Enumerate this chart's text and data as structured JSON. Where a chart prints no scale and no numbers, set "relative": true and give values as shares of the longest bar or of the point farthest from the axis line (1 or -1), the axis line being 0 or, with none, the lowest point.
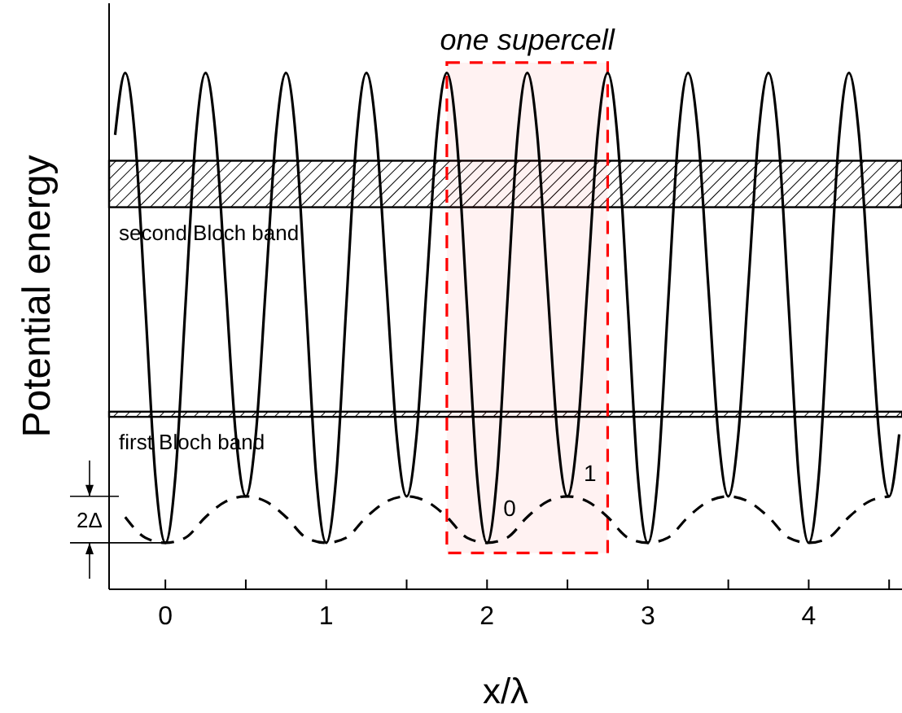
{
  "chart_data": {
    "type": "line",
    "relative": true,
    "xlabel": "x/λ",
    "ylabel": "Potential energy",
    "xlim": [
      -0.35,
      4.58
    ],
    "xticks": [
      0,
      {
        "value": 0.5,
        "label": null
      },
      1,
      {
        "value": 1.5,
        "label": null
      },
      2,
      {
        "value": 2.5,
        "label": null
      },
      3,
      {
        "value": 3.5,
        "label": null
      },
      4,
      {
        "value": 4.5,
        "label": null
      }
    ],
    "legend": false,
    "grid": false,
    "marker": "none",
    "tick_labels": "x",
    "series": [
      {
        "color": "#000000",
        "line_style": "solid",
        "x": [
          -0.3125,
          -0.25,
          -0.1875,
          -0.125,
          -0.0625,
          0,
          0.0625,
          0.125,
          0.1875,
          0.25,
          0.3125,
          0.375,
          0.4375,
          0.5,
          0.5625,
          0.625,
          0.6875,
          0.75,
          0.8125,
          0.875,
          0.9375,
          1,
          1.0625,
          1.125,
          1.1875,
          1.25,
          1.3125,
          1.375,
          1.4375,
          1.5,
          1.5625,
          1.625,
          1.6875,
          1.75,
          1.8125,
          1.875,
          1.9375,
          2,
          2.0625,
          2.125,
          2.1875,
          2.25,
          2.3125,
          2.375,
          2.4375,
          2.5,
          2.5625,
          2.625,
          2.6875,
          2.75,
          2.8125,
          2.875,
          2.9375,
          3,
          3.0625,
          3.125,
          3.1875,
          3.25,
          3.3125,
          3.375,
          3.4375,
          3.5,
          3.5625,
          3.625,
          3.6875,
          3.75,
          3.8125,
          3.875,
          3.9375,
          4,
          4.0625,
          4.125,
          4.1875,
          4.25,
          4.3125,
          4.375,
          4.4375,
          4.5,
          4.5625
        ],
        "values": [
          0.88,
          1,
          0.87,
          0.55,
          0.22,
          0.09,
          0.22,
          0.55,
          0.87,
          1,
          0.88,
          0.59,
          0.3,
          0.18,
          0.3,
          0.59,
          0.88,
          1,
          0.87,
          0.55,
          0.22,
          0.09,
          0.22,
          0.55,
          0.87,
          1,
          0.88,
          0.59,
          0.3,
          0.18,
          0.3,
          0.59,
          0.88,
          1,
          0.87,
          0.55,
          0.22,
          0.09,
          0.22,
          0.55,
          0.87,
          1,
          0.88,
          0.59,
          0.3,
          0.18,
          0.3,
          0.59,
          0.88,
          1,
          0.87,
          0.55,
          0.22,
          0.09,
          0.22,
          0.55,
          0.87,
          1,
          0.88,
          0.59,
          0.3,
          0.18,
          0.3,
          0.59,
          0.88,
          1,
          0.87,
          0.55,
          0.22,
          0.09,
          0.22,
          0.55,
          0.87,
          1,
          0.88,
          0.59,
          0.3,
          0.18,
          0.3
        ]
      },
      {
        "color": "#000000",
        "line_style": "dashed",
        "x": [
          -0.25,
          -0.125,
          0,
          0.125,
          0.25,
          0.375,
          0.5,
          0.625,
          0.75,
          0.875,
          1,
          1.125,
          1.25,
          1.375,
          1.5,
          1.625,
          1.75,
          1.875,
          2,
          2.125,
          2.25,
          2.375,
          2.5,
          2.625,
          2.75,
          2.875,
          3,
          3.125,
          3.25,
          3.375,
          3.5,
          3.625,
          3.75,
          3.875,
          4,
          4.125,
          4.25,
          4.375,
          4.5
        ],
        "values": [
          0.14,
          0.1,
          0.09,
          0.1,
          0.14,
          0.17,
          0.18,
          0.17,
          0.14,
          0.1,
          0.09,
          0.1,
          0.14,
          0.17,
          0.18,
          0.17,
          0.14,
          0.1,
          0.09,
          0.1,
          0.14,
          0.17,
          0.18,
          0.17,
          0.14,
          0.1,
          0.09,
          0.1,
          0.14,
          0.17,
          0.18,
          0.17,
          0.14,
          0.1,
          0.09,
          0.1,
          0.14,
          0.17,
          0.18
        ]
      }
    ],
    "bands": [
      {
        "axis": "y",
        "from": 0.74,
        "to": 0.83,
        "label": "second Bloch band",
        "color": "#000000"
      },
      {
        "axis": "y",
        "from": 0.334,
        "to": 0.344,
        "label": "first Bloch band",
        "color": "#000000"
      },
      {
        "axis": "x",
        "from": 1.75,
        "to": 2.75,
        "label": "one supercell",
        "color": "#ff0000"
      }
    ],
    "annotations": [
      "0",
      "1",
      "2Δ"
    ]
  }
}
